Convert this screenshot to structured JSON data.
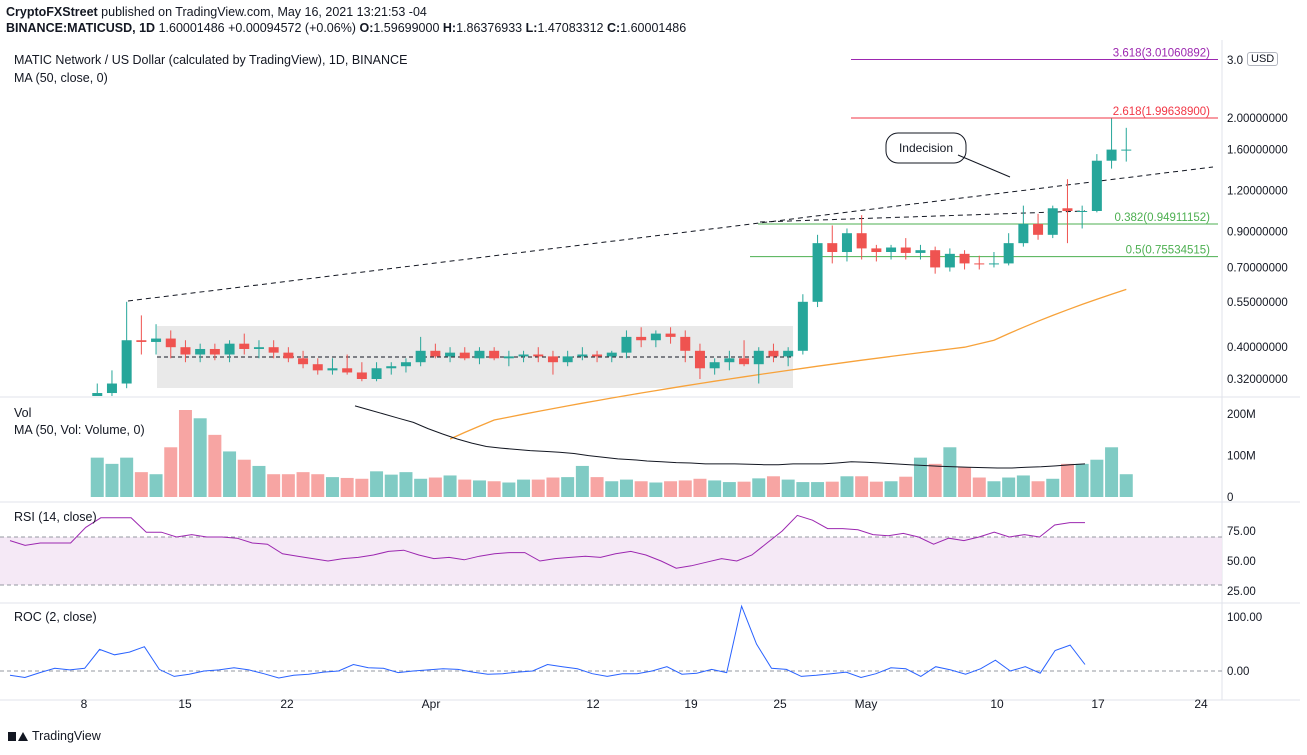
{
  "header": {
    "publisher": "CryptoFXStreet",
    "published_text": "published on TradingView.com, May 16, 2021 13:21:53 -04",
    "symbol": "BINANCE:MATICUSD, 1D",
    "last": "1.60001486",
    "change": "+0.00094572 (+0.06%)",
    "o_label": "O:",
    "o": "1.59699000",
    "h_label": "H:",
    "h": "1.86376933",
    "l_label": "L:",
    "l": "1.47083312",
    "c_label": "C:",
    "c": "1.60001486"
  },
  "legends": {
    "main": "MATIC Network / US Dollar (calculated by TradingView), 1D, BINANCE",
    "ma": "MA (50, close, 0)",
    "vol": "Vol",
    "vol_ma": "MA (50, Vol: Volume, 0)",
    "rsi": "RSI (14, close)",
    "roc": "ROC (2, close)"
  },
  "currency_badge": "USD",
  "brand": "TradingView",
  "colors": {
    "up": "#26a69a",
    "down": "#ef5350",
    "up_vol": "#80cbc4",
    "down_vol": "#f7a5a3",
    "ma": "#f7a23a",
    "rsi": "#9c27b0",
    "roc": "#2962ff",
    "fib_top": "#9c27b0",
    "fib_261": "#f23645",
    "fib_green": "#4caf50",
    "box": "#e0e0e0"
  },
  "chart_data": {
    "type": "candlestick",
    "price_axis_ticks": [
      "3.0",
      "2.00000000",
      "1.60000000",
      "1.20000000",
      "0.90000000",
      "0.70000000",
      "0.55000000",
      "0.40000000",
      "0.32000000"
    ],
    "price_axis_values": [
      3.0,
      2.0,
      1.6,
      1.2,
      0.9,
      0.7,
      0.55,
      0.4,
      0.32
    ],
    "x_ticks": [
      "8",
      "15",
      "22",
      "Apr",
      "12",
      "19",
      "25",
      "May",
      "10",
      "17",
      "24"
    ],
    "volume_axis_ticks": [
      "200M",
      "100M",
      "0"
    ],
    "rsi_axis_ticks": [
      "75.00",
      "50.00",
      "25.00"
    ],
    "roc_axis_ticks": [
      "100.00",
      "0.00"
    ],
    "fib_levels": [
      {
        "label": "3.618(3.01060892)",
        "value": 3.0106
      },
      {
        "label": "2.618(1.99638900)",
        "value": 1.9964
      },
      {
        "label": "0.382(0.94911152)",
        "value": 0.9491
      },
      {
        "label": "0.5(0.75534515)",
        "value": 0.7553
      }
    ],
    "annotation": "Indecision",
    "candles": [
      [
        0.27,
        0.31,
        0.25,
        0.29
      ],
      [
        0.29,
        0.34,
        0.27,
        0.31
      ],
      [
        0.31,
        0.55,
        0.3,
        0.42
      ],
      [
        0.42,
        0.5,
        0.38,
        0.415
      ],
      [
        0.415,
        0.47,
        0.38,
        0.425
      ],
      [
        0.425,
        0.45,
        0.37,
        0.4
      ],
      [
        0.4,
        0.42,
        0.36,
        0.38
      ],
      [
        0.38,
        0.41,
        0.36,
        0.395
      ],
      [
        0.395,
        0.41,
        0.365,
        0.38
      ],
      [
        0.38,
        0.42,
        0.36,
        0.41
      ],
      [
        0.41,
        0.44,
        0.38,
        0.395
      ],
      [
        0.395,
        0.42,
        0.37,
        0.4
      ],
      [
        0.4,
        0.42,
        0.37,
        0.385
      ],
      [
        0.385,
        0.4,
        0.36,
        0.37
      ],
      [
        0.37,
        0.39,
        0.345,
        0.355
      ],
      [
        0.355,
        0.37,
        0.33,
        0.34
      ],
      [
        0.34,
        0.37,
        0.33,
        0.345
      ],
      [
        0.345,
        0.38,
        0.33,
        0.335
      ],
      [
        0.335,
        0.36,
        0.315,
        0.32
      ],
      [
        0.32,
        0.36,
        0.315,
        0.345
      ],
      [
        0.345,
        0.36,
        0.33,
        0.35
      ],
      [
        0.35,
        0.37,
        0.335,
        0.36
      ],
      [
        0.36,
        0.43,
        0.35,
        0.39
      ],
      [
        0.39,
        0.41,
        0.37,
        0.375
      ],
      [
        0.375,
        0.4,
        0.36,
        0.385
      ],
      [
        0.385,
        0.4,
        0.365,
        0.37
      ],
      [
        0.37,
        0.4,
        0.355,
        0.39
      ],
      [
        0.39,
        0.4,
        0.365,
        0.37
      ],
      [
        0.37,
        0.39,
        0.35,
        0.375
      ],
      [
        0.375,
        0.39,
        0.36,
        0.38
      ],
      [
        0.38,
        0.4,
        0.36,
        0.375
      ],
      [
        0.375,
        0.39,
        0.33,
        0.36
      ],
      [
        0.36,
        0.39,
        0.35,
        0.375
      ],
      [
        0.375,
        0.4,
        0.365,
        0.38
      ],
      [
        0.38,
        0.39,
        0.36,
        0.375
      ],
      [
        0.375,
        0.39,
        0.36,
        0.385
      ],
      [
        0.385,
        0.45,
        0.37,
        0.43
      ],
      [
        0.43,
        0.46,
        0.4,
        0.42
      ],
      [
        0.42,
        0.45,
        0.4,
        0.44
      ],
      [
        0.44,
        0.46,
        0.41,
        0.43
      ],
      [
        0.43,
        0.45,
        0.36,
        0.39
      ],
      [
        0.39,
        0.41,
        0.32,
        0.345
      ],
      [
        0.345,
        0.37,
        0.33,
        0.36
      ],
      [
        0.36,
        0.39,
        0.34,
        0.37
      ],
      [
        0.37,
        0.42,
        0.35,
        0.355
      ],
      [
        0.355,
        0.4,
        0.31,
        0.39
      ],
      [
        0.39,
        0.41,
        0.36,
        0.375
      ],
      [
        0.375,
        0.4,
        0.35,
        0.39
      ],
      [
        0.39,
        0.58,
        0.38,
        0.55
      ],
      [
        0.55,
        0.88,
        0.53,
        0.83
      ],
      [
        0.83,
        0.94,
        0.72,
        0.78
      ],
      [
        0.78,
        0.92,
        0.73,
        0.89
      ],
      [
        0.89,
        1.01,
        0.74,
        0.8
      ],
      [
        0.8,
        0.82,
        0.73,
        0.78
      ],
      [
        0.78,
        0.82,
        0.74,
        0.805
      ],
      [
        0.805,
        0.86,
        0.74,
        0.775
      ],
      [
        0.775,
        0.82,
        0.74,
        0.79
      ],
      [
        0.79,
        0.81,
        0.67,
        0.7
      ],
      [
        0.7,
        0.8,
        0.68,
        0.77
      ],
      [
        0.77,
        0.79,
        0.69,
        0.72
      ],
      [
        0.72,
        0.76,
        0.69,
        0.715
      ],
      [
        0.715,
        0.78,
        0.7,
        0.72
      ],
      [
        0.72,
        0.89,
        0.71,
        0.83
      ],
      [
        0.83,
        1.08,
        0.81,
        0.95
      ],
      [
        0.95,
        1.02,
        0.85,
        0.88
      ],
      [
        0.88,
        1.08,
        0.86,
        1.06
      ],
      [
        1.06,
        1.3,
        0.83,
        1.04
      ],
      [
        1.04,
        1.08,
        0.92,
        1.04
      ],
      [
        1.04,
        1.55,
        1.03,
        1.48
      ],
      [
        1.48,
        1.99,
        1.4,
        1.6
      ],
      [
        1.597,
        1.864,
        1.471,
        1.6
      ]
    ],
    "ma50": [
      0.21,
      0.22,
      0.23,
      0.24,
      0.245,
      0.25,
      0.255,
      0.26,
      0.265,
      0.27,
      0.275,
      0.28,
      0.285,
      0.29,
      0.295,
      0.3,
      0.305,
      0.31,
      0.315,
      0.32,
      0.325,
      0.33,
      0.335,
      0.34,
      0.345,
      0.35,
      0.355,
      0.36,
      0.365,
      0.37,
      0.375,
      0.38,
      0.385,
      0.39,
      0.395,
      0.4,
      0.41,
      0.42,
      0.44,
      0.46,
      0.48,
      0.5,
      0.52,
      0.54,
      0.56,
      0.58,
      0.6
    ],
    "ma50_start": 24,
    "volume": [
      95,
      95,
      80,
      95,
      60,
      60,
      55,
      55,
      120,
      210,
      215,
      190,
      150,
      140,
      110,
      90,
      85,
      75,
      60,
      55,
      55,
      60,
      60,
      55,
      45,
      48,
      46,
      45,
      44,
      62,
      60,
      54,
      60,
      50,
      44,
      47,
      48,
      52,
      40,
      42,
      40,
      37,
      38,
      35,
      36,
      42,
      42,
      50,
      47,
      48,
      88,
      75,
      48,
      40,
      38,
      48,
      42,
      38,
      40,
      35,
      38,
      42,
      40,
      44,
      43,
      40,
      36,
      36,
      37,
      45,
      45,
      50,
      55,
      42,
      36,
      37,
      36,
      37,
      44,
      50,
      50,
      37,
      37,
      38,
      37,
      49,
      95,
      90,
      80,
      120,
      80,
      72,
      52,
      47,
      38,
      42,
      47,
      52,
      38,
      38,
      44,
      188,
      80,
      80,
      120,
      90,
      120,
      155,
      55
    ],
    "volume_ma50": [
      220,
      210,
      200,
      190,
      180,
      165,
      152,
      140,
      130,
      122,
      118,
      115,
      112,
      110,
      108,
      105,
      100,
      96,
      92,
      90,
      87,
      85,
      83,
      82,
      80,
      80,
      80,
      79,
      78,
      78,
      80,
      80,
      80,
      82,
      85,
      84,
      82,
      80,
      78,
      76,
      74,
      73,
      72,
      71,
      70,
      70,
      72,
      73,
      75,
      78,
      80
    ],
    "rsi": [
      67,
      63,
      65,
      65,
      65,
      78,
      86,
      86,
      86,
      74,
      74,
      70,
      72,
      70,
      70,
      69,
      65,
      64,
      56,
      54,
      52,
      50,
      52,
      53,
      55,
      58,
      59,
      55,
      52,
      53,
      51,
      54,
      56,
      57,
      57,
      50,
      52,
      53,
      54,
      53,
      56,
      58,
      55,
      50,
      44,
      46,
      49,
      52,
      50,
      55,
      65,
      75,
      88,
      84,
      77,
      77,
      76,
      72,
      71,
      73,
      70,
      64,
      69,
      67,
      70,
      74,
      70,
      72,
      70,
      80,
      82,
      82
    ],
    "roc": [
      -8,
      -12,
      -3,
      5,
      2,
      5,
      40,
      30,
      35,
      45,
      3,
      -10,
      -6,
      0,
      2,
      6,
      2,
      -5,
      -13,
      -8,
      -6,
      -2,
      0,
      12,
      6,
      5,
      -3,
      0,
      2,
      4,
      3,
      -2,
      -6,
      -5,
      -2,
      0,
      12,
      8,
      4,
      -5,
      -10,
      -5,
      -5,
      0,
      8,
      -6,
      -4,
      3,
      -3,
      120,
      50,
      5,
      3,
      -10,
      -8,
      -5,
      -2,
      -12,
      -5,
      6,
      4,
      -10,
      8,
      2,
      -6,
      4,
      20,
      0,
      8,
      -4,
      38,
      48,
      12
    ]
  }
}
